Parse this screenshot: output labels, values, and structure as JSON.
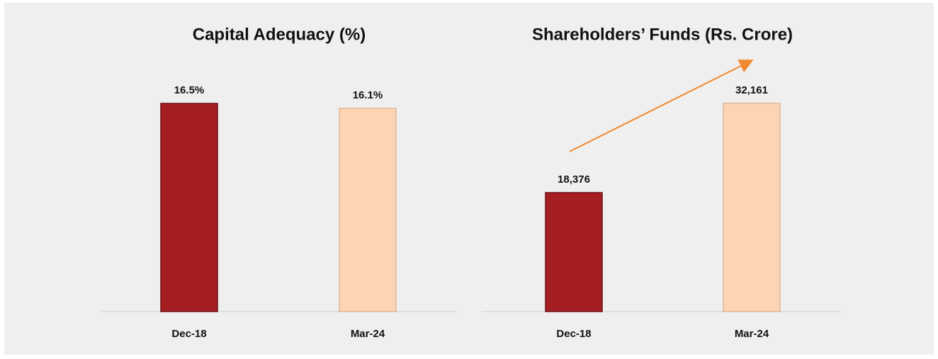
{
  "chart_data": [
    {
      "type": "bar",
      "title": "Capital Adequacy (%)",
      "categories": [
        "Dec-18",
        "Mar-24"
      ],
      "values": [
        16.5,
        16.1
      ],
      "value_labels": [
        "16.5%",
        "16.1%"
      ],
      "colors": [
        "#a51e22",
        "#fdd5b5"
      ]
    },
    {
      "type": "bar",
      "title": "Shareholders’ Funds (Rs. Crore)",
      "categories": [
        "Dec-18",
        "Mar-24"
      ],
      "values": [
        18376,
        32161
      ],
      "value_labels": [
        "18,376",
        "32,161"
      ],
      "colors": [
        "#a51e22",
        "#fdd5b5"
      ]
    }
  ]
}
